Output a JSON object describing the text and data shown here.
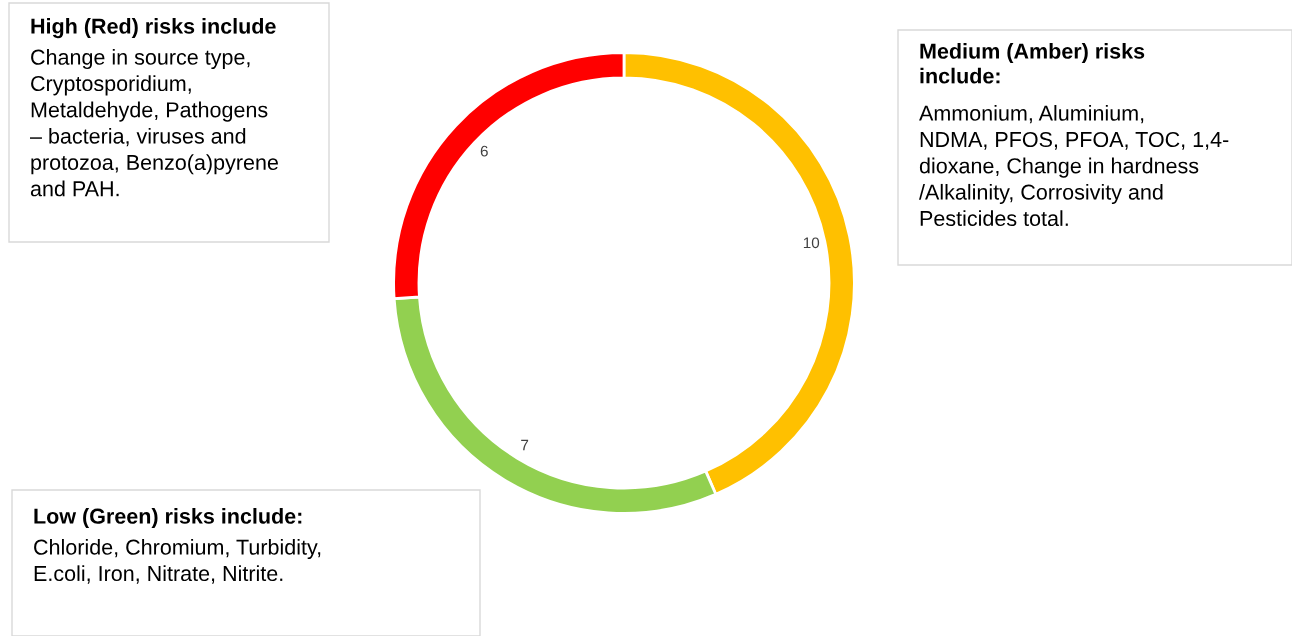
{
  "chart_data": {
    "type": "donut",
    "categories": [
      null,
      null,
      null
    ],
    "values": [
      10,
      7,
      6
    ],
    "colors": [
      "#ffc000",
      "#92d050",
      "#ff0000"
    ],
    "data_labels": true,
    "annotations": [
      "High (Red) risks include",
      "Change in source type,\nCryptosporidium,\nMetaldehyde, Pathogens\n– bacteria, viruses and\nprotozoa, Benzo(a)pyrene\nand PAH.",
      "Medium (Amber) risks\ninclude:",
      "Ammonium, Aluminium,\nNDMA, PFOS, PFOA, TOC, 1,4-\ndioxane, Change in hardness\n/Alkalinity, Corrosivity and\nPesticides total.",
      "Low (Green) risks include:",
      "Chloride, Chromium, Turbidity,\nE.coli, Iron, Nitrate, Nitrite."
    ]
  }
}
